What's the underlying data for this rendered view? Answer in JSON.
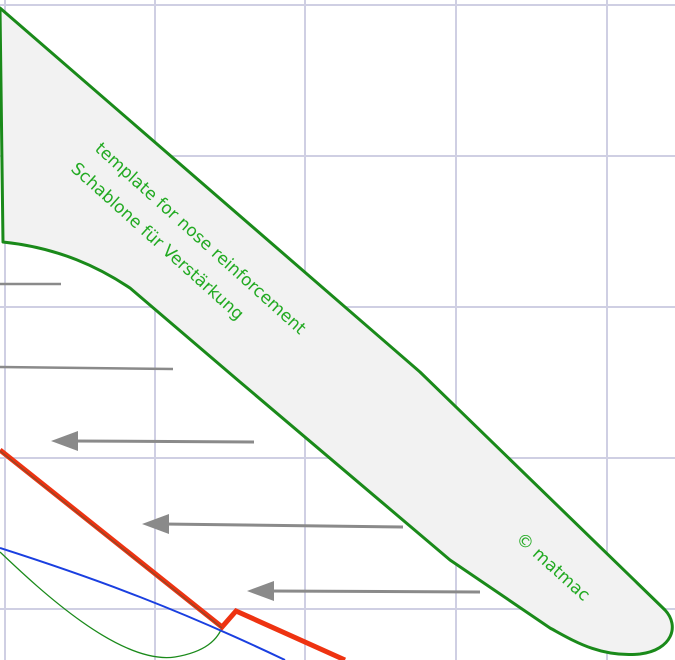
{
  "colors": {
    "background": "#ffffff",
    "grid": "#cfcfe3",
    "template_fill": "#f2f2f2",
    "template_stroke": "#1a8a1a",
    "text": "#22aa22",
    "arrow": "#8a8a8a",
    "red_line": "#ee3311",
    "red_line_shadow": "#8a4a2a",
    "blue_line": "#1a3fe0",
    "thin_green_line": "#1a8a1a"
  },
  "labels": {
    "line1": "template for nose reinforcement",
    "line2": "Schablone für Verstärkung",
    "copyright": "© matmac"
  },
  "arrows": {
    "count": 5,
    "with_heads": 3
  }
}
